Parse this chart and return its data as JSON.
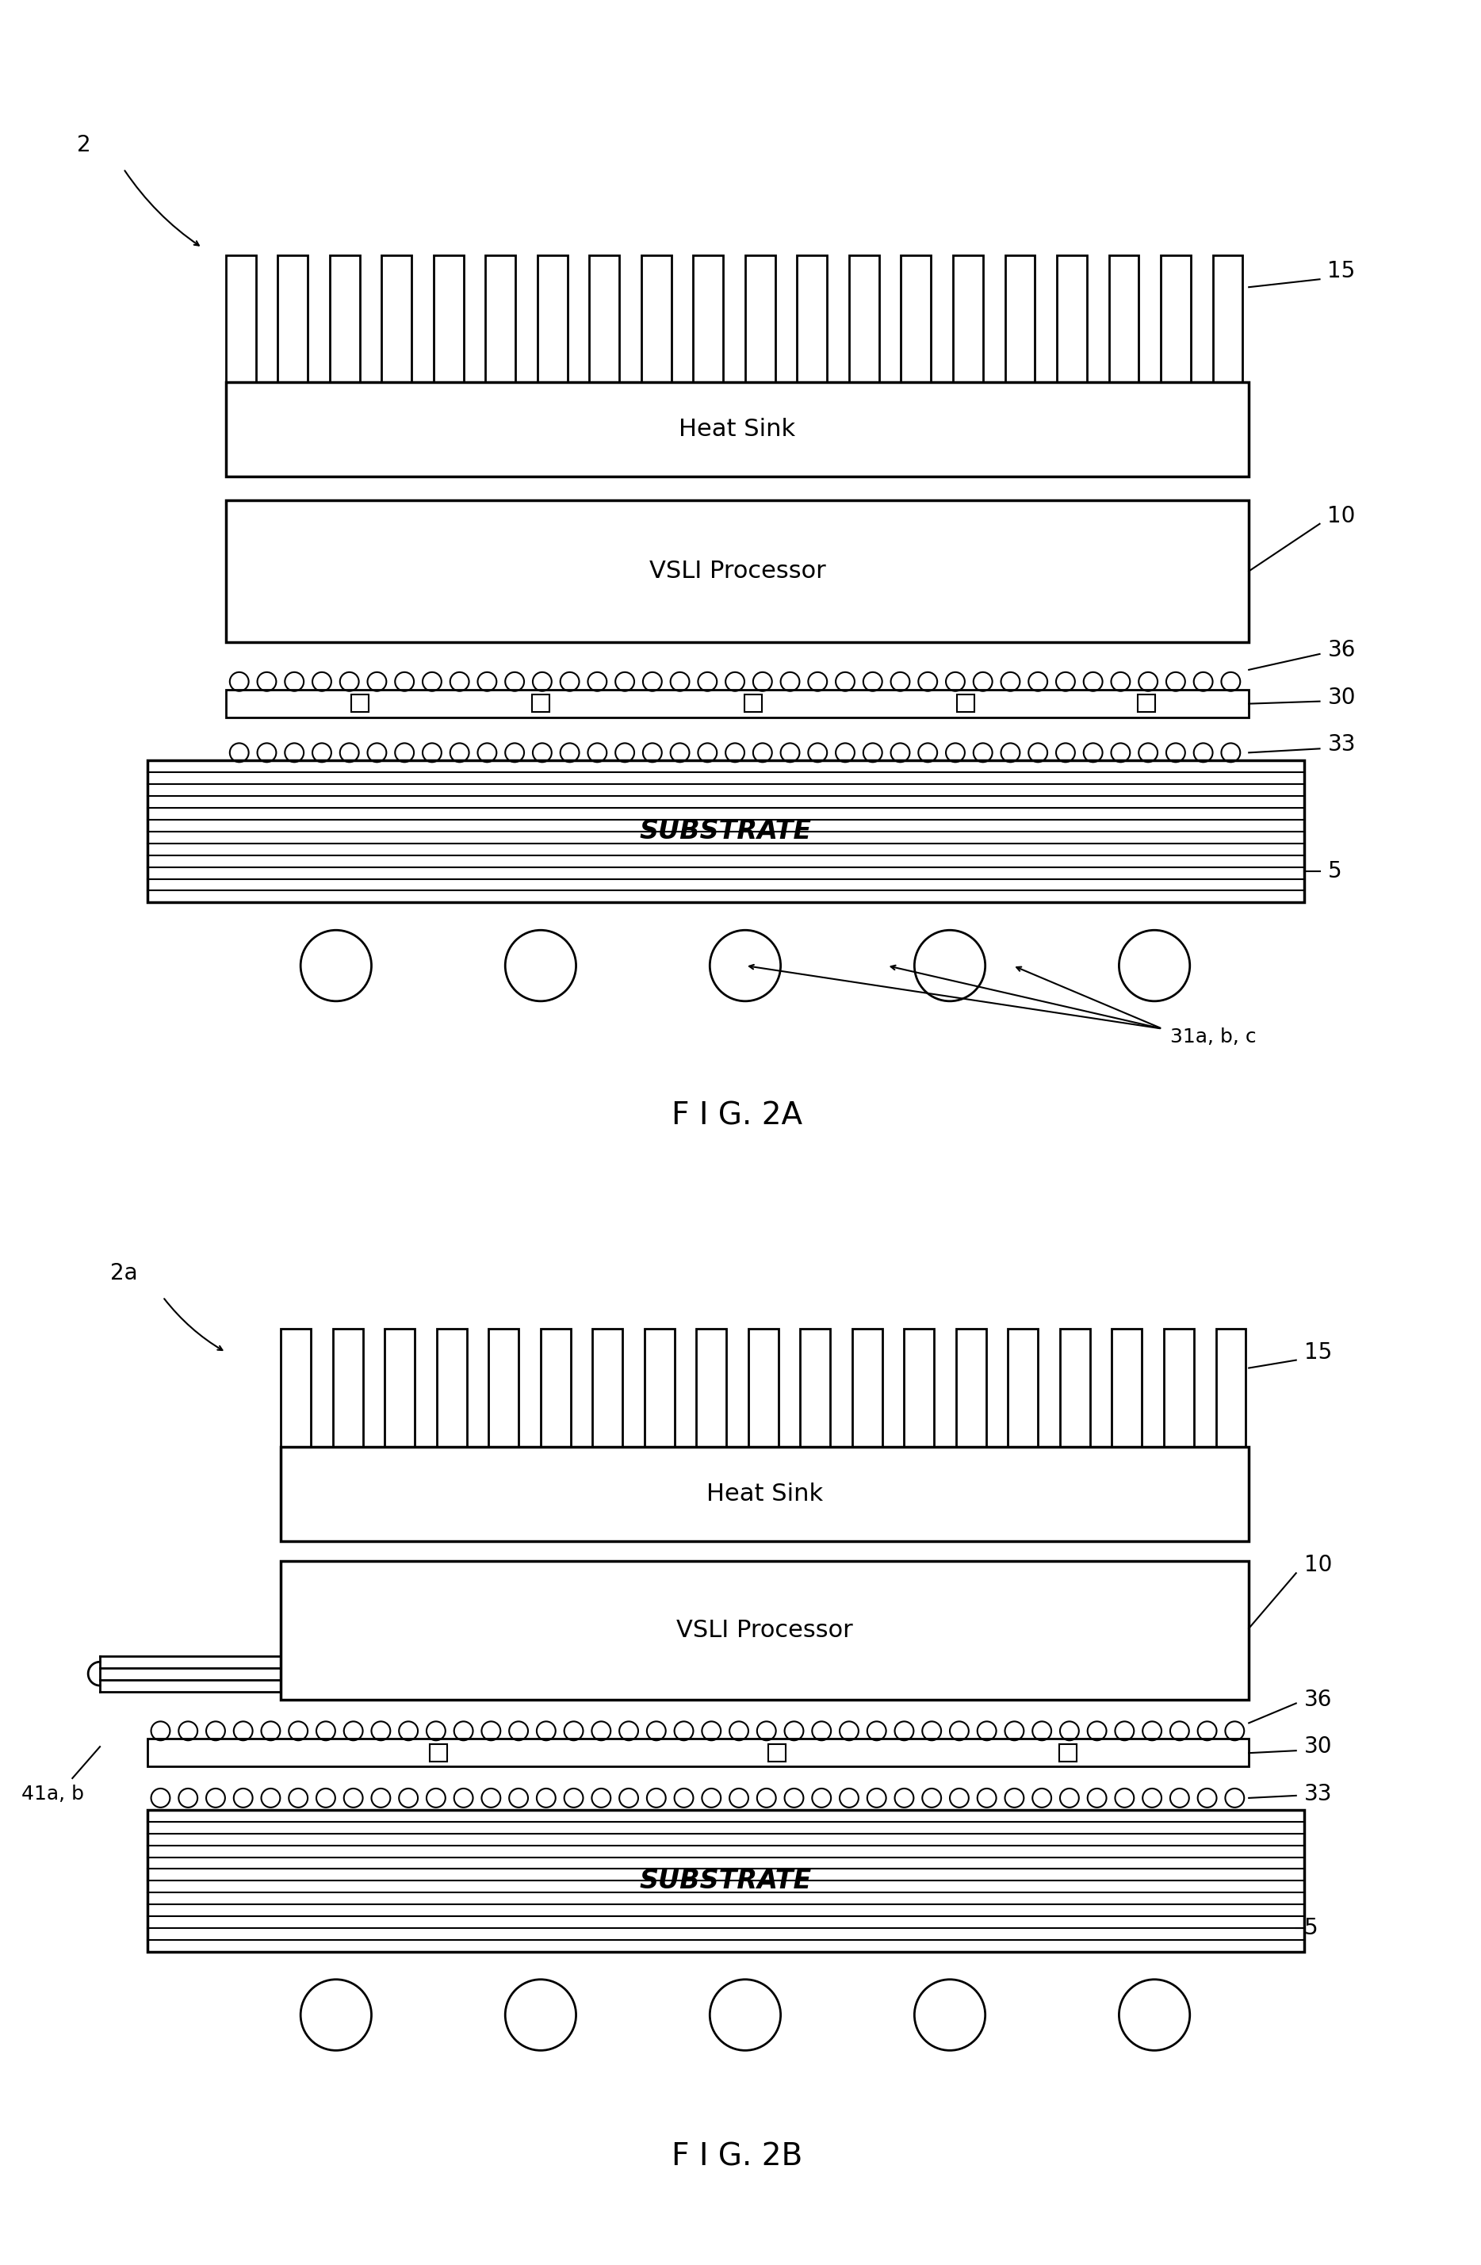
{
  "fig_width": 18.68,
  "fig_height": 28.57,
  "bg_color": "#ffffff",
  "line_color": "#000000",
  "lw_thick": 2.5,
  "lw_thin": 1.5,
  "lw_medium": 2.0,
  "font_size_label": 22,
  "font_size_ref": 20,
  "font_size_fig": 28,
  "fig2a_label": "F I G. 2A",
  "fig2b_label": "F I G. 2B",
  "heat_sink_label": "Heat Sink",
  "vsli_label": "VSLI Processor",
  "substrate_label": "SUBSTRATE",
  "ref_2": "2",
  "ref_5": "5",
  "ref_10": "10",
  "ref_15": "15",
  "ref_30": "30",
  "ref_31": "31a, b, c",
  "ref_33": "33",
  "ref_36": "36",
  "ref_2a": "2a",
  "ref_41": "41a, b"
}
